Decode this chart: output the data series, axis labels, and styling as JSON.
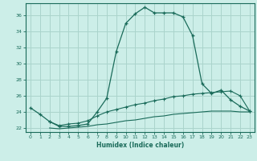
{
  "xlabel": "Humidex (Indice chaleur)",
  "bg_color": "#cceee8",
  "grid_color": "#aad4cc",
  "line_color": "#1a6b5a",
  "xlim": [
    -0.5,
    23.5
  ],
  "ylim": [
    21.5,
    37.5
  ],
  "yticks": [
    22,
    24,
    26,
    28,
    30,
    32,
    34,
    36
  ],
  "xticks": [
    0,
    1,
    2,
    3,
    4,
    5,
    6,
    7,
    8,
    9,
    10,
    11,
    12,
    13,
    14,
    15,
    16,
    17,
    18,
    19,
    20,
    21,
    22,
    23
  ],
  "line1_x": [
    0,
    1,
    2,
    3,
    4,
    5,
    6,
    7,
    8,
    9,
    10,
    11,
    12,
    13,
    14,
    15,
    16,
    17,
    18,
    19,
    20,
    21,
    22,
    23
  ],
  "line1_y": [
    24.5,
    23.7,
    22.8,
    22.2,
    22.2,
    22.3,
    22.5,
    24.0,
    25.7,
    31.5,
    35.0,
    36.2,
    37.0,
    36.3,
    36.3,
    36.3,
    35.8,
    33.5,
    27.5,
    26.3,
    26.7,
    25.5,
    24.7,
    24.1
  ],
  "line2_x": [
    2,
    3,
    4,
    5,
    6,
    7,
    8,
    9,
    10,
    11,
    12,
    13,
    14,
    15,
    16,
    17,
    18,
    19,
    20,
    21,
    22,
    23
  ],
  "line2_y": [
    22.8,
    22.3,
    22.5,
    22.6,
    22.9,
    23.5,
    24.0,
    24.3,
    24.6,
    24.9,
    25.1,
    25.4,
    25.6,
    25.9,
    26.0,
    26.2,
    26.3,
    26.4,
    26.5,
    26.6,
    26.0,
    24.1
  ],
  "line3_x": [
    2,
    3,
    4,
    5,
    6,
    7,
    8,
    9,
    10,
    11,
    12,
    13,
    14,
    15,
    16,
    17,
    18,
    19,
    20,
    21,
    22,
    23
  ],
  "line3_y": [
    22.0,
    21.9,
    22.0,
    22.1,
    22.2,
    22.4,
    22.5,
    22.7,
    22.9,
    23.0,
    23.2,
    23.4,
    23.5,
    23.7,
    23.8,
    23.9,
    24.0,
    24.1,
    24.1,
    24.1,
    24.0,
    24.0
  ]
}
